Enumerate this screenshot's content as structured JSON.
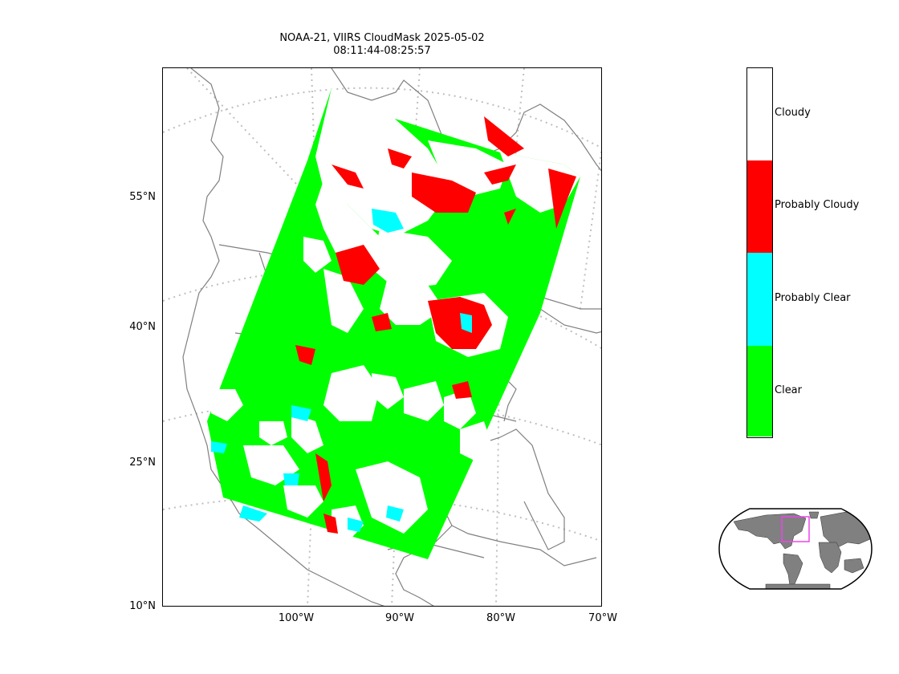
{
  "title": {
    "line1": "NOAA-21, VIIRS CloudMask 2025-05-02",
    "line2": "08:11:44-08:25:57"
  },
  "map": {
    "lat_labels": [
      "55°N",
      "40°N",
      "25°N",
      "10°N"
    ],
    "lon_labels": [
      "100°W",
      "90°W",
      "80°W",
      "70°W"
    ],
    "coastline_color": "#808080",
    "graticule_color": "#bfbfbf"
  },
  "colorbar": {
    "categories": [
      {
        "label": "Cloudy",
        "color": "#ffffff"
      },
      {
        "label": "Probably Cloudy",
        "color": "#ff0000"
      },
      {
        "label": "Probably Clear",
        "color": "#00ffff"
      },
      {
        "label": "Clear",
        "color": "#00ff00"
      }
    ]
  },
  "inset": {
    "land_color": "#808080",
    "highlight_color": "#ee44ee"
  }
}
